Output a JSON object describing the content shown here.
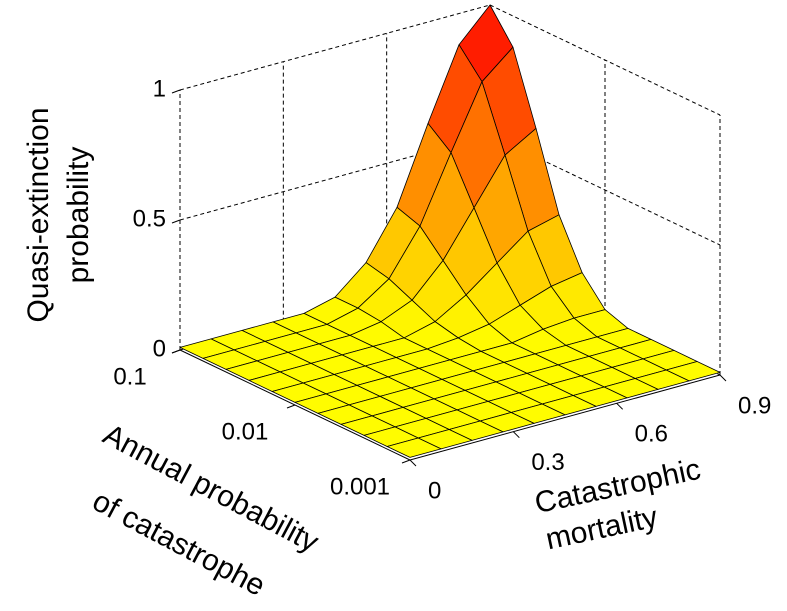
{
  "chart_data": {
    "type": "surface",
    "xlabel": [
      "Catastrophic",
      "mortality"
    ],
    "ylabel": [
      "Annual probability",
      "of catastrophe"
    ],
    "zlabel": [
      "Quasi-extinction",
      "probability"
    ],
    "x": [
      0,
      0.09,
      0.18,
      0.27,
      0.36,
      0.45,
      0.54,
      0.63,
      0.72,
      0.81,
      0.9
    ],
    "y": [
      0.001,
      0.00158,
      0.00251,
      0.00398,
      0.00631,
      0.01,
      0.0158,
      0.0251,
      0.0398,
      0.0631,
      0.1
    ],
    "z": [
      [
        0.01,
        0.01,
        0.01,
        0.01,
        0.01,
        0.01,
        0.01,
        0.01,
        0.01,
        0.01,
        0.01
      ],
      [
        0.01,
        0.01,
        0.01,
        0.01,
        0.01,
        0.01,
        0.01,
        0.01,
        0.01,
        0.01,
        0.01
      ],
      [
        0.01,
        0.01,
        0.01,
        0.01,
        0.01,
        0.01,
        0.01,
        0.01,
        0.01,
        0.01,
        0.01
      ],
      [
        0.01,
        0.01,
        0.01,
        0.01,
        0.01,
        0.01,
        0.01,
        0.01,
        0.01,
        0.01,
        0.01
      ],
      [
        0.01,
        0.01,
        0.01,
        0.01,
        0.01,
        0.01,
        0.01,
        0.01,
        0.01,
        0.01,
        0.01
      ],
      [
        0.01,
        0.01,
        0.01,
        0.01,
        0.01,
        0.01,
        0.01,
        0.01,
        0.03,
        0.04,
        0.04
      ],
      [
        0.01,
        0.01,
        0.01,
        0.01,
        0.01,
        0.01,
        0.02,
        0.04,
        0.08,
        0.12,
        0.14
      ],
      [
        0.01,
        0.01,
        0.01,
        0.01,
        0.01,
        0.01,
        0.04,
        0.11,
        0.2,
        0.29,
        0.32
      ],
      [
        0.01,
        0.01,
        0.01,
        0.01,
        0.01,
        0.03,
        0.08,
        0.2,
        0.37,
        0.54,
        0.61
      ],
      [
        0.01,
        0.01,
        0.01,
        0.01,
        0.01,
        0.04,
        0.12,
        0.29,
        0.54,
        0.78,
        0.88
      ],
      [
        0.01,
        0.01,
        0.01,
        0.01,
        0.01,
        0.04,
        0.14,
        0.32,
        0.61,
        0.88,
        1
      ]
    ],
    "xlim": [
      0,
      0.9
    ],
    "xticks": [
      0,
      0.3,
      0.6,
      0.9
    ],
    "ylim": [
      0.001,
      0.1
    ],
    "yticks": [
      0.001,
      0.01,
      0.1
    ],
    "ylog": true,
    "zlim": [
      0,
      1
    ],
    "zticks": [
      0,
      0.5,
      1
    ],
    "grid": true,
    "colormap": {
      "low": "#ffff00",
      "high": "#ff0000"
    }
  }
}
